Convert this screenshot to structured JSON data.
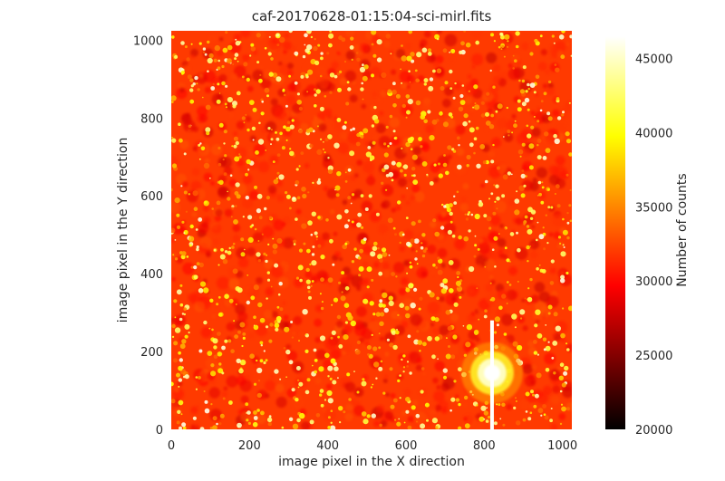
{
  "chart_data": {
    "type": "heatmap",
    "title": "caf-20170628-01:15:04-sci-mirl.fits",
    "xlabel": "image pixel in the X direction",
    "ylabel": "image pixel in the Y direction",
    "xlim": [
      0,
      1024
    ],
    "ylim": [
      0,
      1024
    ],
    "xticks": [
      0,
      200,
      400,
      600,
      800,
      1000
    ],
    "yticks": [
      0,
      200,
      400,
      600,
      800,
      1000
    ],
    "colormap": "hot",
    "colorbar": {
      "label": "Number of counts",
      "range": [
        20000,
        46500
      ],
      "ticks": [
        20000,
        25000,
        30000,
        35000,
        40000,
        45000
      ]
    },
    "grid": false,
    "features": {
      "bright_source": {
        "x": 820,
        "y": 145,
        "counts": 46000
      },
      "saturation_column_x": 820,
      "background_counts": 30000
    }
  }
}
